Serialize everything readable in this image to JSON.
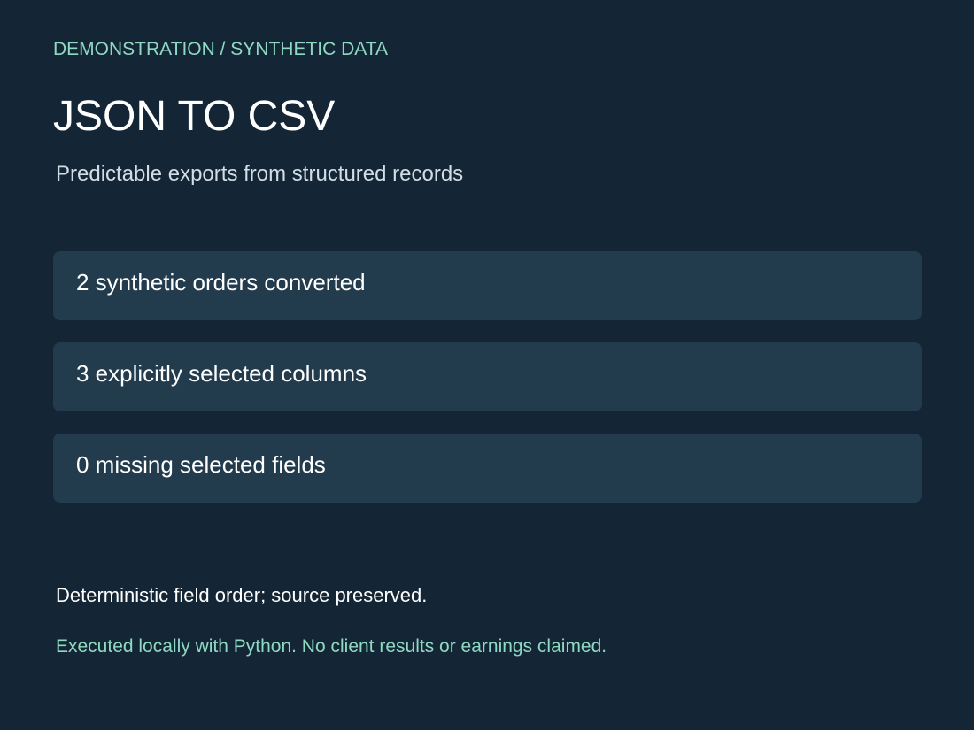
{
  "header": {
    "eyebrow": "DEMONSTRATION / SYNTHETIC DATA",
    "title": "JSON TO CSV",
    "subtitle": "Predictable exports from structured records"
  },
  "cards": [
    "2 synthetic orders converted",
    "3 explicitly selected columns",
    "0 missing selected fields"
  ],
  "note": "Deterministic field order; source preserved.",
  "footer": "Executed locally with Python. No client results or earnings claimed."
}
